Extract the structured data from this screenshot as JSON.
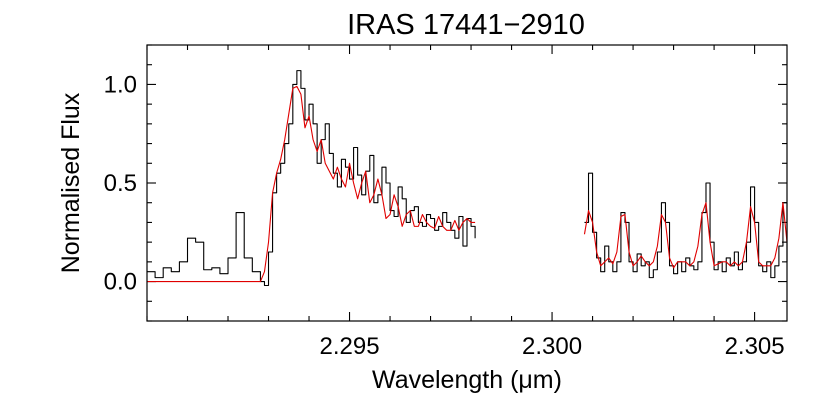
{
  "chart_data": {
    "type": "line",
    "title": "IRAS 17441−2910",
    "xlabel": "Wavelength (μm)",
    "ylabel": "Normalised Flux",
    "xlim": [
      2.29,
      2.3058
    ],
    "ylim": [
      -0.2,
      1.2
    ],
    "x_ticks": [
      2.295,
      2.3,
      2.305
    ],
    "x_tick_labels": [
      "2.295",
      "2.300",
      "2.305"
    ],
    "x_minor_step": 0.001,
    "y_ticks": [
      0.0,
      0.5,
      1.0
    ],
    "y_tick_labels": [
      "0.0",
      "0.5",
      "1.0"
    ],
    "y_minor_step": 0.1,
    "grid": false,
    "colors": {
      "observed": "#000000",
      "model": "#e00000"
    },
    "series": [
      {
        "role": "observed",
        "segments": [
          {
            "x": [
              2.29,
              2.2902,
              2.2904,
              2.2906,
              2.2908,
              2.291,
              2.2912,
              2.2914,
              2.2916,
              2.2918,
              2.292,
              2.2922,
              2.2924,
              2.2926,
              2.2928,
              2.2929,
              2.293,
              2.2931,
              2.2932,
              2.2933,
              2.2934,
              2.2935,
              2.2936,
              2.2937,
              2.2938,
              2.2939,
              2.294,
              2.2941,
              2.2942,
              2.2943,
              2.2944,
              2.2945,
              2.2946,
              2.2947,
              2.2948,
              2.2949,
              2.295,
              2.2951,
              2.2952,
              2.2953,
              2.2954,
              2.2955,
              2.2956,
              2.2957,
              2.2958,
              2.2959,
              2.296,
              2.2961,
              2.2962,
              2.2963,
              2.2964,
              2.2965,
              2.2966,
              2.2967,
              2.2968,
              2.2969,
              2.297,
              2.2971,
              2.2972,
              2.2973,
              2.2974,
              2.2975,
              2.2976,
              2.2977,
              2.2978,
              2.2979,
              2.298,
              2.2981
            ],
            "y": [
              0.05,
              0.02,
              0.07,
              0.05,
              0.1,
              0.22,
              0.2,
              0.06,
              0.07,
              0.04,
              0.12,
              0.35,
              0.12,
              0.05,
              0.0,
              -0.02,
              0.15,
              0.45,
              0.55,
              0.6,
              0.7,
              0.8,
              1.0,
              1.07,
              0.98,
              0.82,
              0.9,
              0.8,
              0.6,
              0.72,
              0.8,
              0.65,
              0.55,
              0.48,
              0.62,
              0.58,
              0.52,
              0.68,
              0.54,
              0.44,
              0.56,
              0.64,
              0.4,
              0.44,
              0.58,
              0.5,
              0.36,
              0.33,
              0.48,
              0.42,
              0.3,
              0.36,
              0.38,
              0.3,
              0.28,
              0.34,
              0.32,
              0.26,
              0.28,
              0.35,
              0.3,
              0.26,
              0.22,
              0.33,
              0.18,
              0.32,
              0.28,
              0.22
            ]
          },
          {
            "x": [
              2.3008,
              2.3009,
              2.301,
              2.3011,
              2.3012,
              2.3013,
              2.3014,
              2.3015,
              2.3016,
              2.3017,
              2.3018,
              2.3019,
              2.302,
              2.3021,
              2.3022,
              2.3023,
              2.3024,
              2.3025,
              2.3026,
              2.3027,
              2.3028,
              2.3029,
              2.303,
              2.3031,
              2.3032,
              2.3033,
              2.3034,
              2.3035,
              2.3036,
              2.3037,
              2.3038,
              2.3039,
              2.304,
              2.3041,
              2.3042,
              2.3043,
              2.3044,
              2.3045,
              2.3046,
              2.3047,
              2.3048,
              2.3049,
              2.305,
              2.3051,
              2.3052,
              2.3053,
              2.3054,
              2.3055,
              2.3056,
              2.3057,
              2.3058
            ],
            "y": [
              0.3,
              0.55,
              0.25,
              0.12,
              0.05,
              0.18,
              0.1,
              0.05,
              0.1,
              0.35,
              0.3,
              0.1,
              0.05,
              0.14,
              0.08,
              0.1,
              0.02,
              0.06,
              0.15,
              0.4,
              0.3,
              0.08,
              0.04,
              0.1,
              0.05,
              0.12,
              0.08,
              0.06,
              0.1,
              0.35,
              0.5,
              0.2,
              0.06,
              0.1,
              0.05,
              0.12,
              0.08,
              0.15,
              0.06,
              0.1,
              0.2,
              0.48,
              0.3,
              0.08,
              0.05,
              0.1,
              0.02,
              0.08,
              0.18,
              0.4,
              0.1
            ]
          }
        ]
      },
      {
        "role": "model",
        "segments": [
          {
            "x": [
              2.29,
              2.2928,
              2.2929,
              2.293,
              2.2931,
              2.2932,
              2.2933,
              2.2934,
              2.2935,
              2.2936,
              2.2937,
              2.2938,
              2.2939,
              2.294,
              2.2941,
              2.2942,
              2.2943,
              2.2944,
              2.2945,
              2.2946,
              2.2947,
              2.2948,
              2.2949,
              2.295,
              2.2951,
              2.2952,
              2.2953,
              2.2954,
              2.2955,
              2.2956,
              2.2957,
              2.2958,
              2.2959,
              2.296,
              2.2961,
              2.2962,
              2.2963,
              2.2964,
              2.2965,
              2.2966,
              2.2967,
              2.2968,
              2.2969,
              2.297,
              2.2971,
              2.2972,
              2.2973,
              2.2974,
              2.2975,
              2.2976,
              2.2977,
              2.2978,
              2.2979,
              2.298,
              2.2981
            ],
            "y": [
              0.0,
              0.0,
              0.05,
              0.2,
              0.45,
              0.55,
              0.62,
              0.72,
              0.85,
              0.98,
              0.99,
              0.95,
              0.78,
              0.84,
              0.72,
              0.66,
              0.72,
              0.6,
              0.56,
              0.52,
              0.58,
              0.52,
              0.48,
              0.6,
              0.5,
              0.42,
              0.5,
              0.56,
              0.4,
              0.44,
              0.52,
              0.44,
              0.32,
              0.34,
              0.44,
              0.38,
              0.28,
              0.34,
              0.36,
              0.28,
              0.28,
              0.34,
              0.3,
              0.28,
              0.27,
              0.33,
              0.28,
              0.26,
              0.26,
              0.31,
              0.26,
              0.3,
              0.32,
              0.3,
              0.3
            ]
          },
          {
            "x": [
              2.3008,
              2.3009,
              2.301,
              2.3011,
              2.3012,
              2.3013,
              2.3014,
              2.3015,
              2.3016,
              2.3017,
              2.3018,
              2.3019,
              2.302,
              2.3021,
              2.3022,
              2.3023,
              2.3024,
              2.3025,
              2.3026,
              2.3027,
              2.3028,
              2.3029,
              2.303,
              2.3031,
              2.3032,
              2.3033,
              2.3034,
              2.3035,
              2.3036,
              2.3037,
              2.3038,
              2.3039,
              2.304,
              2.3041,
              2.3042,
              2.3043,
              2.3044,
              2.3045,
              2.3046,
              2.3047,
              2.3048,
              2.3049,
              2.305,
              2.3051,
              2.3052,
              2.3053,
              2.3054,
              2.3055,
              2.3056,
              2.3057,
              2.3058
            ],
            "y": [
              0.24,
              0.36,
              0.3,
              0.15,
              0.08,
              0.1,
              0.12,
              0.09,
              0.15,
              0.33,
              0.34,
              0.15,
              0.08,
              0.1,
              0.13,
              0.1,
              0.08,
              0.1,
              0.18,
              0.34,
              0.3,
              0.12,
              0.07,
              0.1,
              0.1,
              0.1,
              0.08,
              0.1,
              0.18,
              0.34,
              0.4,
              0.2,
              0.08,
              0.09,
              0.1,
              0.1,
              0.08,
              0.1,
              0.08,
              0.1,
              0.2,
              0.38,
              0.3,
              0.1,
              0.08,
              0.08,
              0.08,
              0.12,
              0.22,
              0.4,
              0.2
            ]
          }
        ]
      }
    ]
  }
}
